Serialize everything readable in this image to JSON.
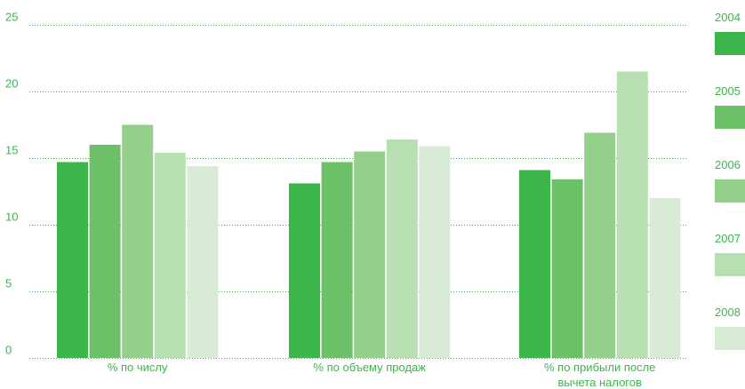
{
  "chart_data": {
    "type": "bar",
    "categories": [
      [
        "% по числу"
      ],
      [
        "% по объему продаж"
      ],
      [
        "% по прибыли после",
        "вычета налогов"
      ]
    ],
    "series": [
      {
        "name": "2004",
        "color": "#3cb54a",
        "values": [
          14.7,
          13.1,
          14.1
        ]
      },
      {
        "name": "2005",
        "color": "#6cc067",
        "values": [
          16.0,
          14.7,
          13.4
        ]
      },
      {
        "name": "2006",
        "color": "#94cf8c",
        "values": [
          17.5,
          15.5,
          16.9
        ]
      },
      {
        "name": "2007",
        "color": "#b7dfb1",
        "values": [
          15.4,
          16.4,
          21.5
        ]
      },
      {
        "name": "2008",
        "color": "#d8ecd5",
        "values": [
          14.4,
          15.9,
          12.0
        ]
      }
    ],
    "yticks": [
      "0",
      "5",
      "10",
      "15",
      "20",
      "25"
    ],
    "ylim": [
      0,
      25
    ],
    "grid": true,
    "legend_position": "right",
    "title": "",
    "xlabel": "",
    "ylabel": ""
  }
}
